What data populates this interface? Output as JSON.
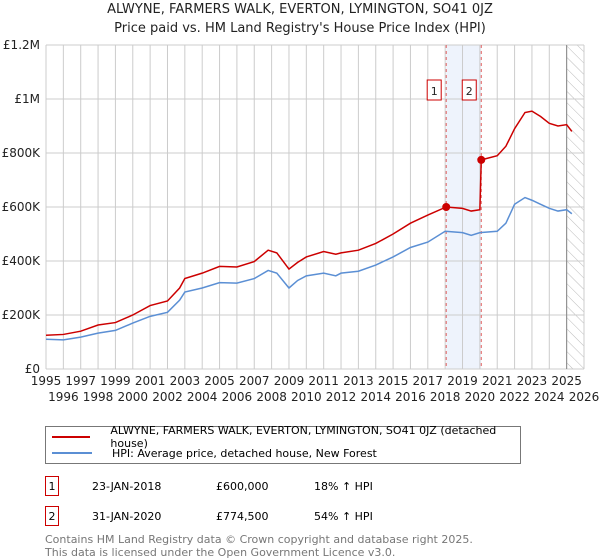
{
  "chart_data": {
    "type": "line",
    "title": "ALWYNE, FARMERS WALK, EVERTON, LYMINGTON, SO41 0JZ",
    "subtitle": "Price paid vs. HM Land Registry's House Price Index (HPI)",
    "xlim": [
      1995,
      2026
    ],
    "ylim": [
      0,
      1200000
    ],
    "y_ticks": [
      {
        "v": 0,
        "label": "£0"
      },
      {
        "v": 200000,
        "label": "£200K"
      },
      {
        "v": 400000,
        "label": "£400K"
      },
      {
        "v": 600000,
        "label": "£600K"
      },
      {
        "v": 800000,
        "label": "£800K"
      },
      {
        "v": 1000000,
        "label": "£1M"
      },
      {
        "v": 1200000,
        "label": "£1.2M"
      }
    ],
    "x_ticks": [
      "1995",
      "1996",
      "1997",
      "1998",
      "1999",
      "2000",
      "2001",
      "2002",
      "2003",
      "2004",
      "2005",
      "2006",
      "2007",
      "2008",
      "2009",
      "2010",
      "2011",
      "2012",
      "2013",
      "2014",
      "2015",
      "2016",
      "2017",
      "2018",
      "2019",
      "2020",
      "2021",
      "2022",
      "2023",
      "2024",
      "2025",
      "2026"
    ],
    "grid": true,
    "legend_placement": "bottom",
    "series": [
      {
        "name": "ALWYNE, FARMERS WALK, EVERTON, LYMINGTON, SO41 0JZ (detached house)",
        "color": "#cc0000",
        "x": [
          1995,
          1996,
          1997,
          1998,
          1999,
          2000,
          2001,
          2002,
          2002.7,
          2003,
          2004,
          2005,
          2006,
          2007,
          2007.8,
          2008.3,
          2009,
          2009.5,
          2010,
          2011,
          2011.7,
          2012,
          2013,
          2014,
          2015,
          2016,
          2017,
          2018.06,
          2019,
          2019.5,
          2020.0,
          2020.08,
          2021,
          2021.5,
          2022,
          2022.6,
          2023,
          2023.5,
          2024,
          2024.5,
          2025,
          2025.3
        ],
        "y": [
          125000,
          128000,
          140000,
          163000,
          172000,
          200000,
          235000,
          252000,
          300000,
          335000,
          355000,
          380000,
          378000,
          398000,
          440000,
          430000,
          370000,
          395000,
          415000,
          435000,
          425000,
          430000,
          440000,
          465000,
          500000,
          540000,
          570000,
          600000,
          595000,
          585000,
          590000,
          774500,
          790000,
          825000,
          890000,
          950000,
          955000,
          935000,
          910000,
          900000,
          905000,
          880000
        ]
      },
      {
        "name": "HPI: Average price, detached house, New Forest",
        "color": "#5b8fd4",
        "x": [
          1995,
          1996,
          1997,
          1998,
          1999,
          2000,
          2001,
          2002,
          2002.7,
          2003,
          2004,
          2005,
          2006,
          2007,
          2007.8,
          2008.3,
          2009,
          2009.5,
          2010,
          2011,
          2011.7,
          2012,
          2013,
          2014,
          2015,
          2016,
          2017,
          2018,
          2019,
          2019.5,
          2020,
          2021,
          2021.5,
          2022,
          2022.6,
          2023,
          2023.5,
          2024,
          2024.5,
          2025,
          2025.3
        ],
        "y": [
          110000,
          108000,
          118000,
          133000,
          143000,
          170000,
          195000,
          210000,
          255000,
          285000,
          300000,
          320000,
          318000,
          335000,
          365000,
          355000,
          300000,
          328000,
          345000,
          355000,
          345000,
          355000,
          362000,
          385000,
          415000,
          450000,
          470000,
          510000,
          505000,
          495000,
          505000,
          510000,
          540000,
          610000,
          635000,
          625000,
          610000,
          595000,
          585000,
          590000,
          575000
        ]
      }
    ],
    "annotations": [
      {
        "label": "1",
        "x": 2018.06,
        "y": 600000
      },
      {
        "label": "2",
        "x": 2020.08,
        "y": 774500
      }
    ],
    "shaded_period": [
      2018.06,
      2020.08
    ],
    "forecast_hatch_from": 2025.0
  },
  "legend": [
    "ALWYNE, FARMERS WALK, EVERTON, LYMINGTON, SO41 0JZ (detached house)",
    "HPI: Average price, detached house, New Forest"
  ],
  "sales": [
    {
      "num": "1",
      "date": "23-JAN-2018",
      "price": "£600,000",
      "hpi": "18% ↑ HPI"
    },
    {
      "num": "2",
      "date": "31-JAN-2020",
      "price": "£774,500",
      "hpi": "54% ↑ HPI"
    }
  ],
  "footer": [
    "Contains HM Land Registry data © Crown copyright and database right 2025.",
    "This data is licensed under the Open Government Licence v3.0."
  ]
}
